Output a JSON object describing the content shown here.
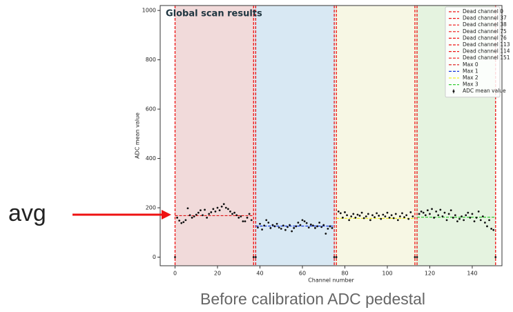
{
  "chart_data": {
    "type": "scatter",
    "title": "Global scan results",
    "x_label": "Channel number",
    "y_label": "ADC mean value",
    "xlim": [
      -7,
      154
    ],
    "ylim": [
      -35,
      1020
    ],
    "xticks": [
      0,
      20,
      40,
      60,
      80,
      100,
      120,
      140
    ],
    "yticks": [
      0,
      200,
      400,
      600,
      800,
      1000
    ],
    "regions": [
      {
        "x_range": [
          0,
          37.5
        ],
        "color": "#f1dada"
      },
      {
        "x_range": [
          37.5,
          75.5
        ],
        "color": "#d8e8f3"
      },
      {
        "x_range": [
          75.5,
          113.5
        ],
        "color": "#f7f7e4"
      },
      {
        "x_range": [
          113.5,
          151
        ],
        "color": "#e5f3e0"
      }
    ],
    "dead_color": "#ee1111",
    "dead_channels": [
      {
        "name": "Dead channel 0",
        "x": 0
      },
      {
        "name": "Dead channel 37",
        "x": 37
      },
      {
        "name": "Dead channel 38",
        "x": 38
      },
      {
        "name": "Dead channel 75",
        "x": 75
      },
      {
        "name": "Dead channel 76",
        "x": 76
      },
      {
        "name": "Dead channel 113",
        "x": 113
      },
      {
        "name": "Dead channel 114",
        "x": 114
      },
      {
        "name": "Dead channel 151",
        "x": 151
      }
    ],
    "max_lines": [
      {
        "name": "Max 0",
        "color": "#dd1111",
        "value": 168,
        "x_range": [
          0,
          37
        ]
      },
      {
        "name": "Max 1",
        "color": "#1133dd",
        "value": 126,
        "x_range": [
          38,
          75
        ]
      },
      {
        "name": "Max 2",
        "color": "#eeee22",
        "value": 157,
        "x_range": [
          76,
          113
        ]
      },
      {
        "name": "Max 3",
        "color": "#33cc33",
        "value": 162,
        "x_range": [
          114,
          151
        ]
      }
    ],
    "series": [
      {
        "name": "ADC mean value",
        "color": "#111111",
        "x": [
          0,
          1,
          2,
          3,
          4,
          5,
          6,
          7,
          8,
          9,
          10,
          11,
          12,
          13,
          14,
          15,
          16,
          17,
          18,
          19,
          20,
          21,
          22,
          23,
          24,
          25,
          26,
          27,
          28,
          29,
          30,
          31,
          32,
          33,
          34,
          35,
          36,
          37,
          38,
          39,
          40,
          41,
          42,
          43,
          44,
          45,
          46,
          47,
          48,
          49,
          50,
          51,
          52,
          53,
          54,
          55,
          56,
          57,
          58,
          59,
          60,
          61,
          62,
          63,
          64,
          65,
          66,
          67,
          68,
          69,
          70,
          71,
          72,
          73,
          74,
          75,
          76,
          77,
          78,
          79,
          80,
          81,
          82,
          83,
          84,
          85,
          86,
          87,
          88,
          89,
          90,
          91,
          92,
          93,
          94,
          95,
          96,
          97,
          98,
          99,
          100,
          101,
          102,
          103,
          104,
          105,
          106,
          107,
          108,
          109,
          110,
          111,
          112,
          113,
          114,
          115,
          116,
          117,
          118,
          119,
          120,
          121,
          122,
          123,
          124,
          125,
          126,
          127,
          128,
          129,
          130,
          131,
          132,
          133,
          134,
          135,
          136,
          137,
          138,
          139,
          140,
          141,
          142,
          143,
          144,
          145,
          146,
          147,
          148,
          149,
          150,
          151
        ],
        "values": [
          0,
          160,
          148,
          138,
          142,
          150,
          198,
          170,
          160,
          165,
          172,
          180,
          190,
          170,
          192,
          160,
          175,
          182,
          195,
          185,
          200,
          190,
          205,
          215,
          200,
          195,
          185,
          175,
          180,
          170,
          160,
          165,
          145,
          145,
          160,
          175,
          150,
          0,
          0,
          120,
          135,
          112,
          128,
          150,
          140,
          118,
          130,
          125,
          135,
          120,
          115,
          128,
          110,
          122,
          130,
          105,
          118,
          125,
          140,
          130,
          150,
          145,
          138,
          120,
          132,
          128,
          118,
          125,
          140,
          122,
          130,
          95,
          115,
          125,
          118,
          0,
          0,
          185,
          178,
          160,
          182,
          170,
          150,
          165,
          175,
          160,
          172,
          168,
          180,
          158,
          165,
          175,
          150,
          170,
          162,
          178,
          168,
          155,
          172,
          165,
          180,
          160,
          170,
          158,
          175,
          150,
          165,
          178,
          162,
          170,
          155,
          182,
          165,
          0,
          0,
          175,
          185,
          180,
          170,
          190,
          175,
          195,
          160,
          185,
          170,
          192,
          165,
          180,
          150,
          175,
          190,
          160,
          170,
          145,
          155,
          165,
          150,
          170,
          180,
          160,
          175,
          145,
          160,
          185,
          150,
          165,
          140,
          125,
          150,
          115,
          110,
          0
        ]
      }
    ],
    "annotation": "avg",
    "caption": "Before calibration ADC pedestal"
  }
}
